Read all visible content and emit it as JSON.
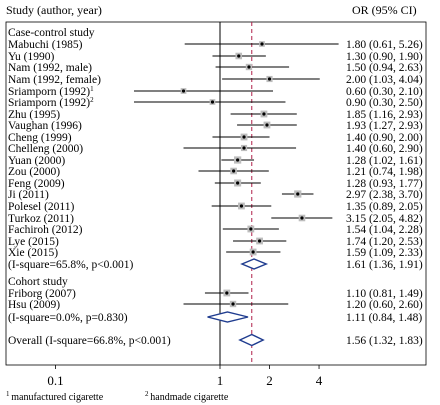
{
  "chart_data": {
    "type": "forest",
    "x_scale": "log",
    "xlim": [
      0.05,
      6
    ],
    "ticks": [
      {
        "value": 0.1,
        "label": "0.1"
      },
      {
        "value": 1,
        "label": "1"
      },
      {
        "value": 2,
        "label": "2"
      },
      {
        "value": 4,
        "label": "4"
      }
    ],
    "reference_line": 1,
    "overall_line": 1.56,
    "header": {
      "study": "Study (author, year)",
      "effect": "OR (95% CI)"
    },
    "rows": [
      {
        "kind": "group",
        "label": "Case-control study"
      },
      {
        "kind": "study",
        "label": "Mabuchi (1985)",
        "or": 1.8,
        "lo": 0.61,
        "hi": 5.26,
        "ci_text": "1.80 (0.61, 5.26)",
        "weight": 1.0
      },
      {
        "kind": "study",
        "label": "Yu (1990)",
        "or": 1.3,
        "lo": 0.9,
        "hi": 1.9,
        "ci_text": "1.30 (0.90, 1.90)",
        "weight": 1.4
      },
      {
        "kind": "study",
        "label": "Nam (1992, male)",
        "or": 1.5,
        "lo": 0.94,
        "hi": 2.63,
        "ci_text": "1.50 (0.94, 2.63)",
        "weight": 1.3
      },
      {
        "kind": "study",
        "label": "Nam (1992, female)",
        "or": 2.0,
        "lo": 1.03,
        "hi": 4.04,
        "ci_text": "2.00 (1.03, 4.04)",
        "weight": 1.2
      },
      {
        "kind": "study",
        "label": "Sriamporn (1992)",
        "sup": "1",
        "or": 0.6,
        "lo": 0.3,
        "hi": 2.1,
        "ci_text": "0.60 (0.30, 2.10)",
        "weight": 1.0
      },
      {
        "kind": "study",
        "label": "Sriamporn (1992)",
        "sup": "2",
        "or": 0.9,
        "lo": 0.3,
        "hi": 2.5,
        "ci_text": "0.90 (0.30, 2.50)",
        "weight": 1.0
      },
      {
        "kind": "study",
        "label": "Zhu (1995)",
        "or": 1.85,
        "lo": 1.16,
        "hi": 2.93,
        "ci_text": "1.85 (1.16, 2.93)",
        "weight": 1.5
      },
      {
        "kind": "study",
        "label": "Vaughan (1996)",
        "or": 1.93,
        "lo": 1.27,
        "hi": 2.93,
        "ci_text": "1.93 (1.27, 2.93)",
        "weight": 1.5
      },
      {
        "kind": "study",
        "label": "Cheng (1999)",
        "or": 1.4,
        "lo": 0.9,
        "hi": 2.0,
        "ci_text": "1.40 (0.90, 2.00)",
        "weight": 1.5
      },
      {
        "kind": "study",
        "label": "Chelleng (2000)",
        "or": 1.4,
        "lo": 0.6,
        "hi": 2.9,
        "ci_text": "1.40 (0.60, 2.90)",
        "weight": 1.2
      },
      {
        "kind": "study",
        "label": "Yuan (2000)",
        "or": 1.28,
        "lo": 1.02,
        "hi": 1.61,
        "ci_text": "1.28 (1.02, 1.61)",
        "weight": 1.7
      },
      {
        "kind": "study",
        "label": "Zou (2000)",
        "or": 1.21,
        "lo": 0.74,
        "hi": 1.98,
        "ci_text": "1.21 (0.74, 1.98)",
        "weight": 1.4
      },
      {
        "kind": "study",
        "label": "Feng (2009)",
        "or": 1.28,
        "lo": 0.93,
        "hi": 1.77,
        "ci_text": "1.28 (0.93, 1.77)",
        "weight": 1.6
      },
      {
        "kind": "study",
        "label": "Ji (2011)",
        "or": 2.97,
        "lo": 2.38,
        "hi": 3.7,
        "ci_text": "2.97 (2.38, 3.70)",
        "weight": 1.7
      },
      {
        "kind": "study",
        "label": "Polesel (2011)",
        "or": 1.35,
        "lo": 0.89,
        "hi": 2.05,
        "ci_text": "1.35 (0.89, 2.05)",
        "weight": 1.5
      },
      {
        "kind": "study",
        "label": "Turkoz (2011)",
        "or": 3.15,
        "lo": 2.05,
        "hi": 4.82,
        "ci_text": "3.15 (2.05, 4.82)",
        "weight": 1.4
      },
      {
        "kind": "study",
        "label": "Fachiroh (2012)",
        "or": 1.54,
        "lo": 1.04,
        "hi": 2.28,
        "ci_text": "1.54 (1.04, 2.28)",
        "weight": 1.5
      },
      {
        "kind": "study",
        "label": "Lye (2015)",
        "or": 1.74,
        "lo": 1.2,
        "hi": 2.53,
        "ci_text": "1.74 (1.20, 2.53)",
        "weight": 1.5
      },
      {
        "kind": "study",
        "label": "Xie (2015)",
        "or": 1.59,
        "lo": 1.09,
        "hi": 2.33,
        "ci_text": "1.59 (1.09, 2.33)",
        "weight": 1.5
      },
      {
        "kind": "subtotal",
        "label": "(I-square=65.8%, p<0.001)",
        "or": 1.61,
        "lo": 1.36,
        "hi": 1.91,
        "ci_text": "1.61 (1.36, 1.91)"
      },
      {
        "kind": "group",
        "label": "Cohort study"
      },
      {
        "kind": "study",
        "label": "Friborg (2007)",
        "or": 1.1,
        "lo": 0.81,
        "hi": 1.49,
        "ci_text": "1.10 (0.81, 1.49)",
        "weight": 1.5
      },
      {
        "kind": "study",
        "label": "Hsu (2009)",
        "or": 1.2,
        "lo": 0.6,
        "hi": 2.6,
        "ci_text": "1.20 (0.60, 2.60)",
        "weight": 1.3
      },
      {
        "kind": "subtotal",
        "label": "(I-square=0.0%, p=0.830)",
        "or": 1.11,
        "lo": 0.84,
        "hi": 1.48,
        "ci_text": "1.11 (0.84, 1.48)"
      },
      {
        "kind": "overall",
        "label": "Overall (I-square=66.8%, p<0.001)",
        "or": 1.56,
        "lo": 1.32,
        "hi": 1.83,
        "ci_text": "1.56 (1.32, 1.83)"
      }
    ],
    "footnotes": [
      {
        "sup": "1",
        "text": "manufactured cigarette"
      },
      {
        "sup": "2",
        "text": "handmade cigarette"
      }
    ],
    "colors": {
      "diamond": "#1f3c8f",
      "overall_line": "#b0204a",
      "box": "#bdbdbd"
    }
  }
}
